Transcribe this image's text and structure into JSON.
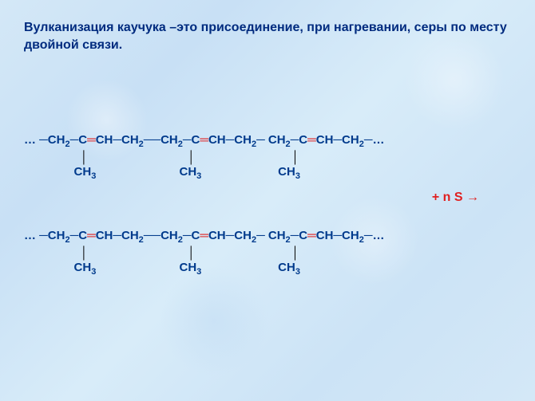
{
  "colors": {
    "title": "#002b7f",
    "chain": "#003a8c",
    "dbond": "#e02020",
    "vbond": "#0a0a0a",
    "reagent": "#e02020",
    "bg_stops": [
      "#d4e8f7",
      "#c8e0f5",
      "#d8ecf9",
      "#cce3f6",
      "#d4e8f7"
    ]
  },
  "title": "Вулканизация каучука –это присоединение, при нагревании, серы по месту двойной связи.",
  "chain": {
    "ellipsis_left": "… ─",
    "ellipsis_right": "─…",
    "unit_pre": "CH",
    "sub2": "2",
    "seg_c": "─C",
    "dbl": "═",
    "seg_ch_ch2": "CH─CH",
    "long_bond": "──",
    "short_bond": "─ ",
    "vbond": "│",
    "ch3": "CH",
    "sub3": "3"
  },
  "layout": {
    "bond_spacing_1": "                 │                              │                             │",
    "ch3_spacing_1": "               CH_3                         CH_3                       CH_3",
    "bond_spacing_2": "                 │                              │                             │",
    "ch3_spacing_2": "               CH_3                         CH_3                       CH_3"
  },
  "reagent": {
    "plus": "+  ",
    "text": "n S ",
    "arrow": "→"
  }
}
